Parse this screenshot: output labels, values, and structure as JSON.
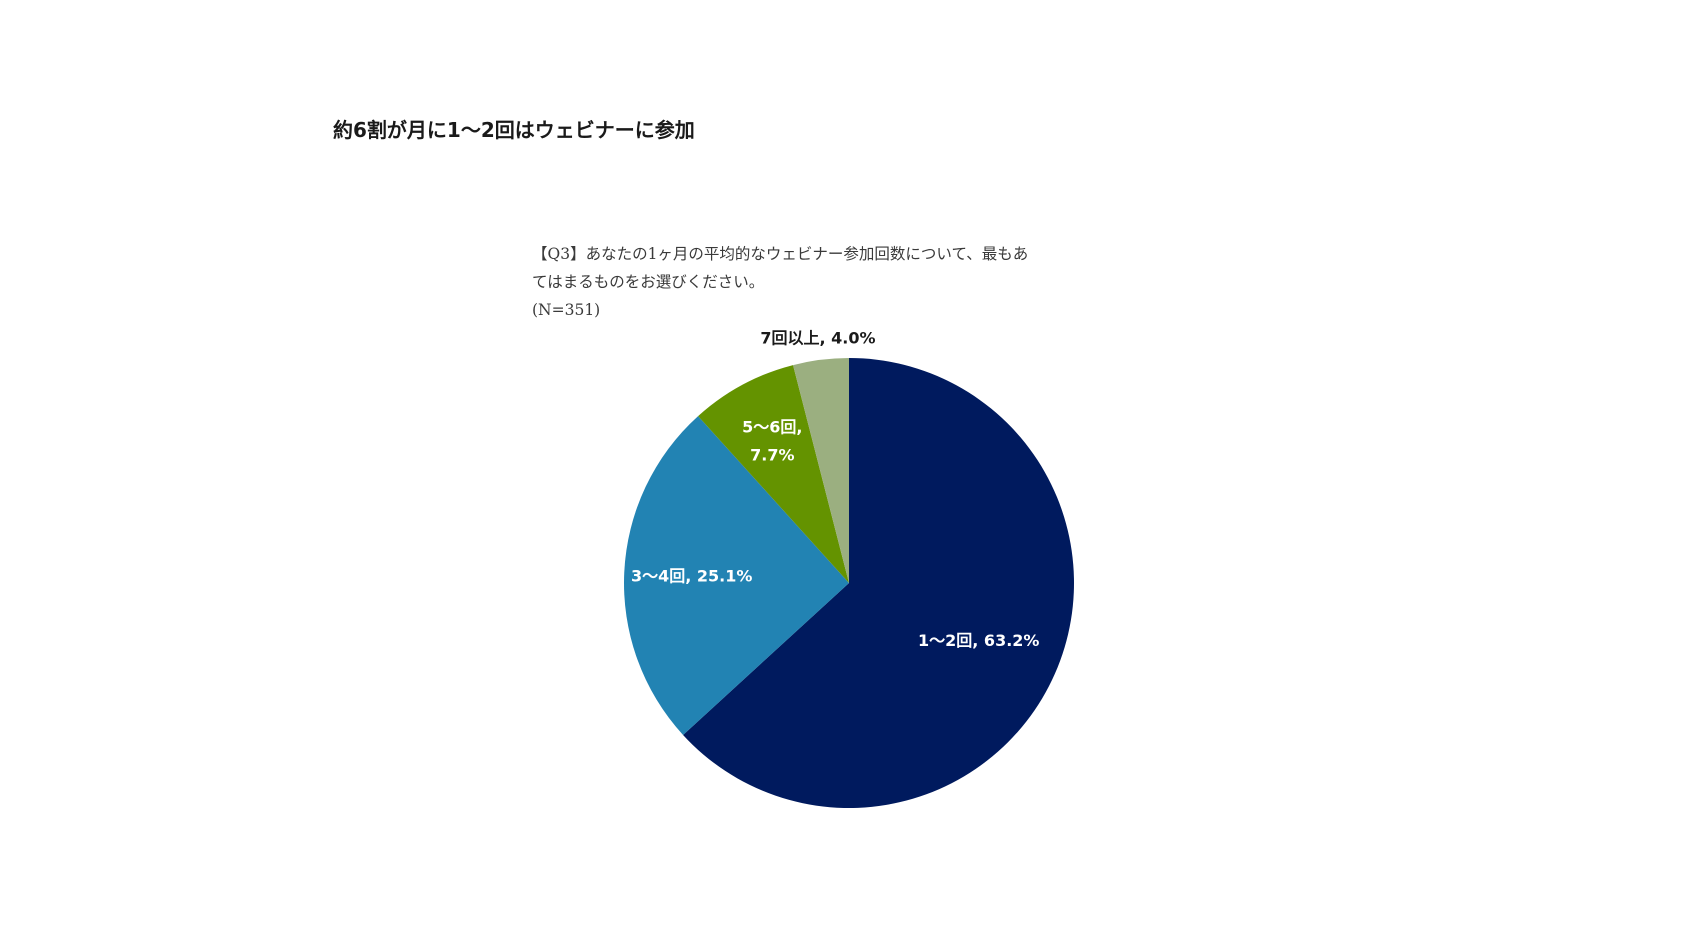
{
  "headline": "約6割が月に1〜2回はウェビナーに参加",
  "question": {
    "line1": "【Q3】あなたの1ヶ月の平均的なウェビナー参加回数について、最もあ",
    "line2": "てはまるものをお選びください。",
    "sample": "(N=351)"
  },
  "chart_data": {
    "type": "pie",
    "title": "",
    "start_angle_deg": 0,
    "direction": "clockwise",
    "slices": [
      {
        "label": "1〜2回",
        "value": 63.2,
        "display": "1〜2回, 63.2%",
        "color": "#001A5E",
        "label_color": "#ffffff"
      },
      {
        "label": "3〜4回",
        "value": 25.1,
        "display": "3〜4回, 25.1%",
        "color": "#2283B3",
        "label_color": "#ffffff"
      },
      {
        "label": "5〜6回",
        "value": 7.7,
        "display": "5〜6回,\n7.7%",
        "color": "#649300",
        "label_color": "#ffffff"
      },
      {
        "label": "7回以上",
        "value": 4.0,
        "display": "7回以上, 4.0%",
        "color": "#9BAF80",
        "label_color": "#1a1a1a"
      }
    ]
  }
}
